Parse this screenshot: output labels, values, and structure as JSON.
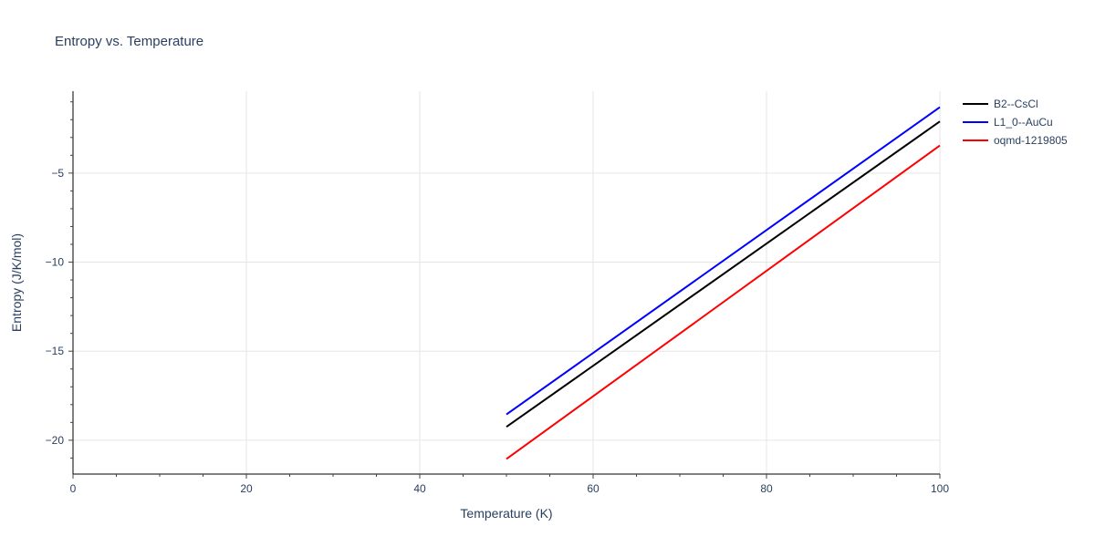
{
  "chart_data": {
    "type": "line",
    "title": "Entropy vs. Temperature",
    "xlabel": "Temperature (K)",
    "ylabel": "Entropy (J/K/mol)",
    "xlim": [
      0,
      100
    ],
    "ylim": [
      -21.9,
      -0.4
    ],
    "x_ticks": [
      0,
      20,
      40,
      60,
      80,
      100
    ],
    "x_tick_labels": [
      "0",
      "20",
      "40",
      "60",
      "80",
      "100"
    ],
    "y_ticks": [
      -20,
      -15,
      -10,
      -5
    ],
    "y_tick_labels": [
      "−20",
      "−15",
      "−10",
      "−5"
    ],
    "grid": true,
    "legend_position": "top-right",
    "series": [
      {
        "name": "B2--CsCl",
        "color": "#000000",
        "x": [
          50,
          100
        ],
        "y": [
          -19.25,
          -2.1
        ]
      },
      {
        "name": "L1_0--AuCu",
        "color": "#0000ff",
        "x": [
          50,
          100
        ],
        "y": [
          -18.55,
          -1.3
        ]
      },
      {
        "name": "oqmd-1219805",
        "color": "#ff0000",
        "x": [
          50,
          100
        ],
        "y": [
          -21.05,
          -3.45
        ]
      }
    ]
  }
}
